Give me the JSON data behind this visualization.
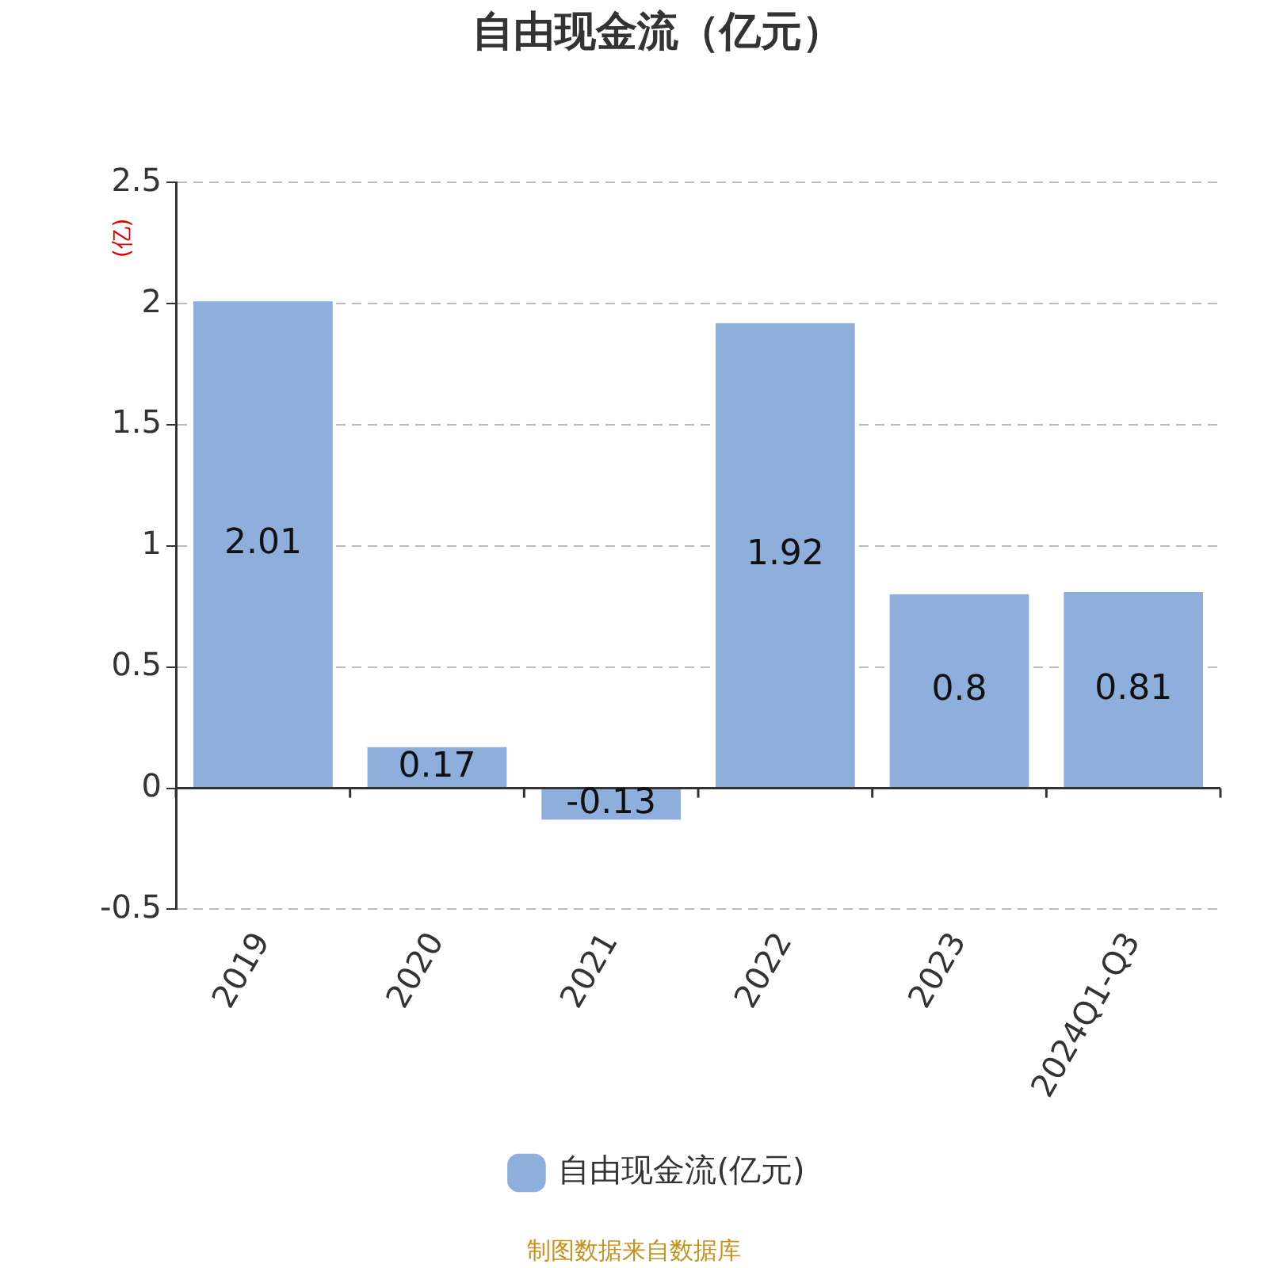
{
  "chart_data": {
    "type": "bar",
    "title": "自由现金流（亿元）",
    "ylabel": "(亿)",
    "categories": [
      "2019",
      "2020",
      "2021",
      "2022",
      "2023",
      "2024Q1-Q3"
    ],
    "series": [
      {
        "name": "自由现金流(亿元)",
        "color": "#8eaedb",
        "values": [
          2.01,
          0.17,
          -0.13,
          1.92,
          0.8,
          0.81
        ]
      }
    ],
    "ylim": [
      -0.5,
      2.5
    ],
    "yticks": [
      -0.5,
      0,
      0.5,
      1,
      1.5,
      2,
      2.5
    ],
    "grid": "y",
    "legend": "bottom",
    "data_labels": true,
    "annotations": [
      "制图数据来自数据库"
    ]
  }
}
